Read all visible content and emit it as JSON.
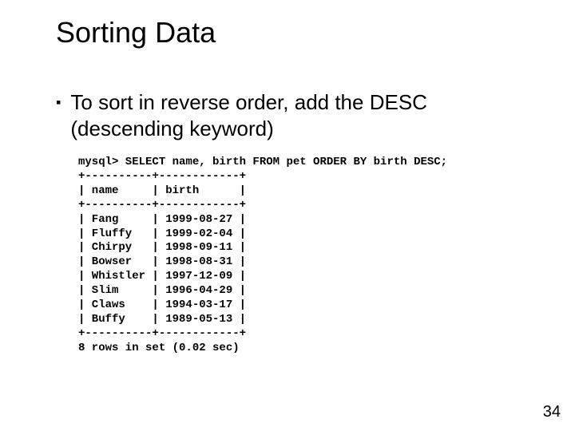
{
  "title": "Sorting Data",
  "bullet": "To sort in reverse order, add the DESC (descending keyword)",
  "code": {
    "prompt": "mysql> SELECT name, birth FROM pet ORDER BY birth DESC;",
    "divider": "+----------+------------+",
    "header_name": "name",
    "header_birth": "birth",
    "rows": [
      {
        "name": "Fang",
        "birth": "1999-08-27"
      },
      {
        "name": "Fluffy",
        "birth": "1999-02-04"
      },
      {
        "name": "Chirpy",
        "birth": "1998-09-11"
      },
      {
        "name": "Bowser",
        "birth": "1998-08-31"
      },
      {
        "name": "Whistler",
        "birth": "1997-12-09"
      },
      {
        "name": "Slim",
        "birth": "1996-04-29"
      },
      {
        "name": "Claws",
        "birth": "1994-03-17"
      },
      {
        "name": "Buffy",
        "birth": "1989-05-13"
      }
    ],
    "footer": "8 rows in set (0.02 sec)",
    "col1_width": 8,
    "col2_width": 10
  },
  "page_number": "34",
  "colors": {
    "background": "#ffffff",
    "text": "#000000"
  },
  "fonts": {
    "title_size_pt": 36,
    "body_size_pt": 26,
    "code_size_pt": 14,
    "code_family": "Courier New"
  }
}
